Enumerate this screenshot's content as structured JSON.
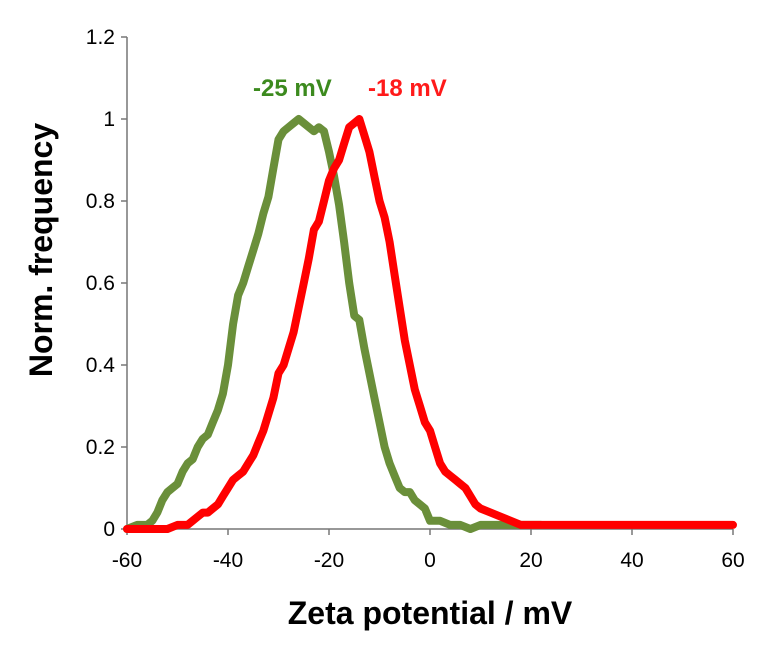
{
  "chart_data": {
    "type": "line",
    "title": "",
    "xlabel": "Zeta potential / mV",
    "ylabel": "Norm. frequency",
    "xlim": [
      -60,
      60
    ],
    "ylim": [
      0,
      1.2
    ],
    "x_ticks": [
      "-60",
      "-40",
      "-20",
      "0",
      "20",
      "40",
      "60"
    ],
    "y_ticks": [
      "0",
      "0.2",
      "0.4",
      "0.6",
      "0.8",
      "1",
      "1.2"
    ],
    "grid": false,
    "series": [
      {
        "color": "#6a8f3a",
        "label": "-25 mV",
        "x": [
          -60,
          -58,
          -56,
          -55,
          -54,
          -53,
          -52,
          -51,
          -50,
          -49,
          -48,
          -47,
          -46,
          -45,
          -44,
          -43,
          -42,
          -41,
          -40,
          -39,
          -38,
          -37,
          -36,
          -35,
          -34,
          -33,
          -32,
          -31,
          -30,
          -29,
          -28,
          -27,
          -26,
          -25,
          -24,
          -23,
          -22,
          -21,
          -20,
          -19,
          -18,
          -17,
          -16,
          -15,
          -14,
          -13,
          -12,
          -11,
          -10,
          -9,
          -8,
          -7,
          -6,
          -5,
          -4,
          -3,
          -2,
          -1,
          0,
          2,
          4,
          6,
          8,
          10,
          12,
          14,
          16,
          18,
          20,
          22
        ],
        "y": [
          0,
          0.01,
          0.01,
          0.02,
          0.04,
          0.07,
          0.09,
          0.1,
          0.11,
          0.14,
          0.16,
          0.17,
          0.2,
          0.22,
          0.23,
          0.26,
          0.29,
          0.33,
          0.4,
          0.5,
          0.57,
          0.6,
          0.64,
          0.68,
          0.72,
          0.77,
          0.81,
          0.88,
          0.95,
          0.97,
          0.98,
          0.99,
          1.0,
          0.99,
          0.98,
          0.97,
          0.98,
          0.97,
          0.92,
          0.86,
          0.79,
          0.7,
          0.6,
          0.52,
          0.51,
          0.44,
          0.38,
          0.32,
          0.26,
          0.2,
          0.16,
          0.13,
          0.1,
          0.09,
          0.09,
          0.07,
          0.06,
          0.05,
          0.02,
          0.02,
          0.01,
          0.01,
          0.0,
          0.01,
          0.01,
          0.01,
          0.01,
          0.01,
          0.01,
          0.01
        ]
      },
      {
        "color": "#ff0000",
        "label": "-18 mV",
        "x": [
          -60,
          -56,
          -52,
          -50,
          -48,
          -47,
          -46,
          -45,
          -44,
          -43,
          -42,
          -41,
          -40,
          -39,
          -38,
          -37,
          -36,
          -35,
          -34,
          -33,
          -32,
          -31,
          -30,
          -29,
          -28,
          -27,
          -26,
          -25,
          -24,
          -23,
          -22,
          -21,
          -20,
          -19,
          -18,
          -17,
          -16,
          -15,
          -14,
          -13,
          -12,
          -11,
          -10,
          -9,
          -8,
          -7,
          -6,
          -5,
          -4,
          -3,
          -2,
          -1,
          0,
          1,
          2,
          3,
          4,
          5,
          6,
          7,
          8,
          9,
          10,
          12,
          14,
          16,
          18,
          20,
          22,
          24,
          26,
          28,
          30,
          40,
          50,
          60
        ],
        "y": [
          0,
          0,
          0,
          0.01,
          0.01,
          0.02,
          0.03,
          0.04,
          0.04,
          0.05,
          0.06,
          0.08,
          0.1,
          0.12,
          0.13,
          0.14,
          0.16,
          0.18,
          0.21,
          0.24,
          0.28,
          0.32,
          0.38,
          0.4,
          0.44,
          0.48,
          0.54,
          0.6,
          0.66,
          0.73,
          0.75,
          0.8,
          0.85,
          0.88,
          0.9,
          0.94,
          0.98,
          0.99,
          1.0,
          0.96,
          0.92,
          0.86,
          0.8,
          0.76,
          0.7,
          0.62,
          0.54,
          0.46,
          0.4,
          0.34,
          0.3,
          0.26,
          0.24,
          0.2,
          0.16,
          0.14,
          0.13,
          0.12,
          0.11,
          0.1,
          0.08,
          0.06,
          0.05,
          0.04,
          0.03,
          0.02,
          0.01,
          0.01,
          0.01,
          0.01,
          0.01,
          0.01,
          0.01,
          0.01,
          0.01,
          0.01
        ]
      }
    ]
  }
}
